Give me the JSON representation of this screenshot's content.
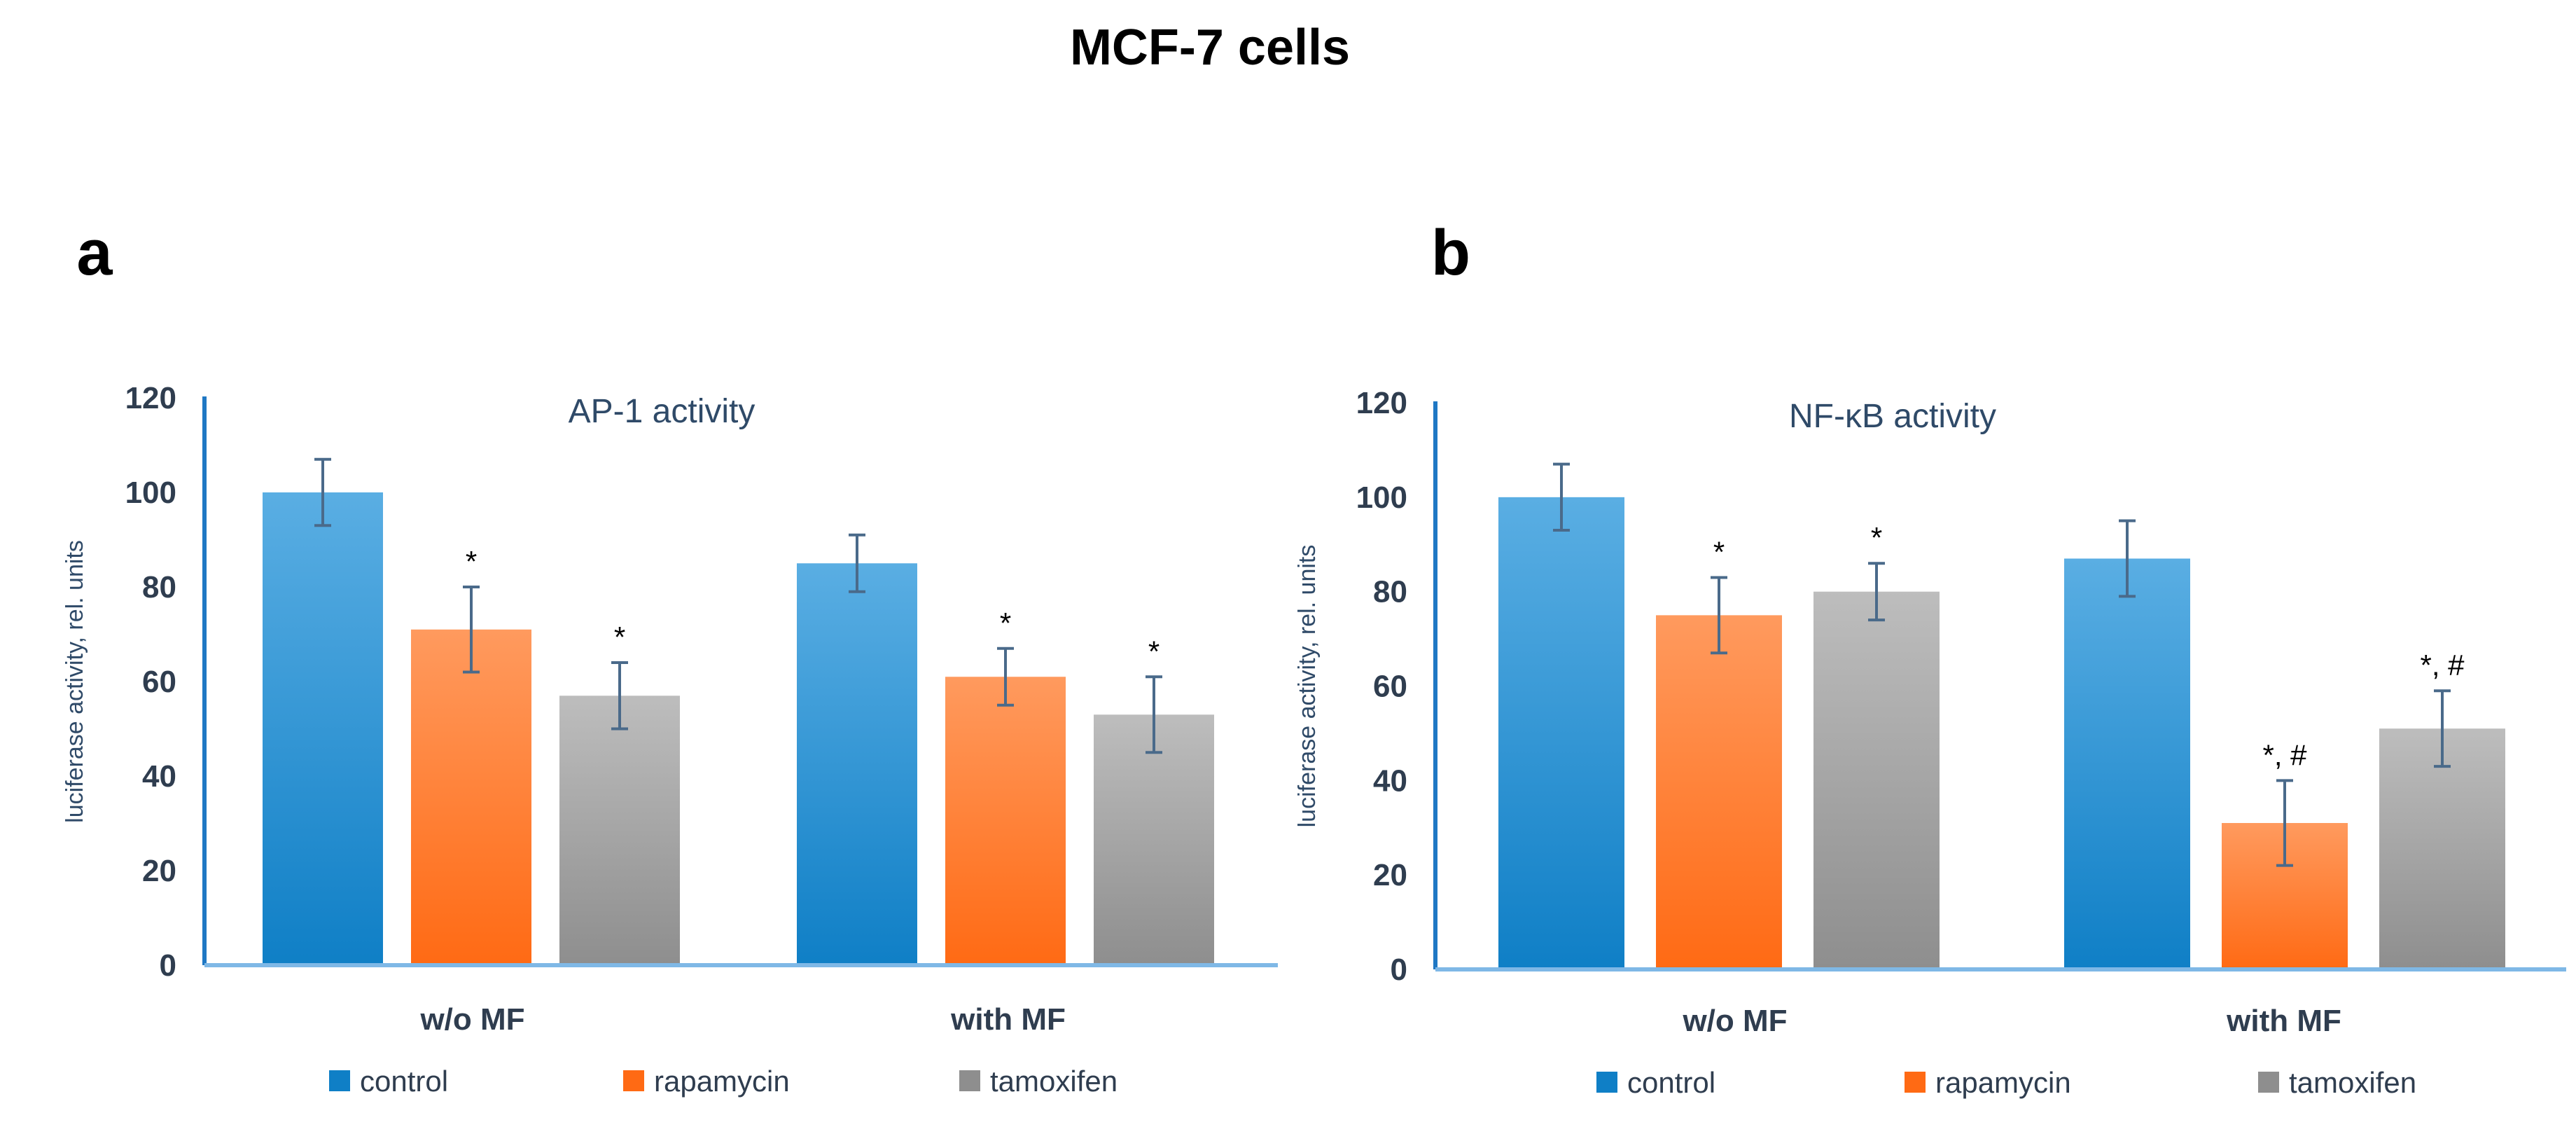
{
  "figure_title": "MCF-7 cells",
  "colors": {
    "control": [
      "#5aaee3",
      "#0f7fc6"
    ],
    "rapamycin": [
      "#ff9a5e",
      "#ff6a14"
    ],
    "tamoxifen": [
      "#bdbdbd",
      "#8e8e8e"
    ],
    "axis": "#1f78c4",
    "errorbar": "#4a6a8a"
  },
  "chart_data": [
    {
      "panel": "a",
      "type": "bar",
      "title": "AP-1 activity",
      "ylabel": "luciferase activity, rel. units",
      "xlabel": "",
      "ylim": [
        0,
        120
      ],
      "yticks": [
        0,
        20,
        40,
        60,
        80,
        100,
        120
      ],
      "categories": [
        "w/o MF",
        "with MF"
      ],
      "series": [
        {
          "name": "control",
          "values": [
            100,
            85
          ],
          "errors": [
            7,
            6
          ],
          "annotations": [
            "",
            ""
          ]
        },
        {
          "name": "rapamycin",
          "values": [
            71,
            61
          ],
          "errors": [
            9,
            6
          ],
          "annotations": [
            "*",
            "*"
          ]
        },
        {
          "name": "tamoxifen",
          "values": [
            57,
            53
          ],
          "errors": [
            7,
            8
          ],
          "annotations": [
            "*",
            "*"
          ]
        }
      ],
      "legend": [
        "control",
        "rapamycin",
        "tamoxifen"
      ],
      "legend_position": "bottom"
    },
    {
      "panel": "b",
      "type": "bar",
      "title": "NF-κB activity",
      "ylabel": "luciferase activity, rel. units",
      "xlabel": "",
      "ylim": [
        0,
        120
      ],
      "yticks": [
        0,
        20,
        40,
        60,
        80,
        100,
        120
      ],
      "categories": [
        "w/o MF",
        "with MF"
      ],
      "series": [
        {
          "name": "control",
          "values": [
            100,
            87
          ],
          "errors": [
            7,
            8
          ],
          "annotations": [
            "",
            ""
          ]
        },
        {
          "name": "rapamycin",
          "values": [
            75,
            31
          ],
          "errors": [
            8,
            9
          ],
          "annotations": [
            "*",
            "*, #"
          ]
        },
        {
          "name": "tamoxifen",
          "values": [
            80,
            51
          ],
          "errors": [
            6,
            8
          ],
          "annotations": [
            "*",
            "*, #"
          ]
        }
      ],
      "legend": [
        "control",
        "rapamycin",
        "tamoxifen"
      ],
      "legend_position": "bottom"
    }
  ]
}
